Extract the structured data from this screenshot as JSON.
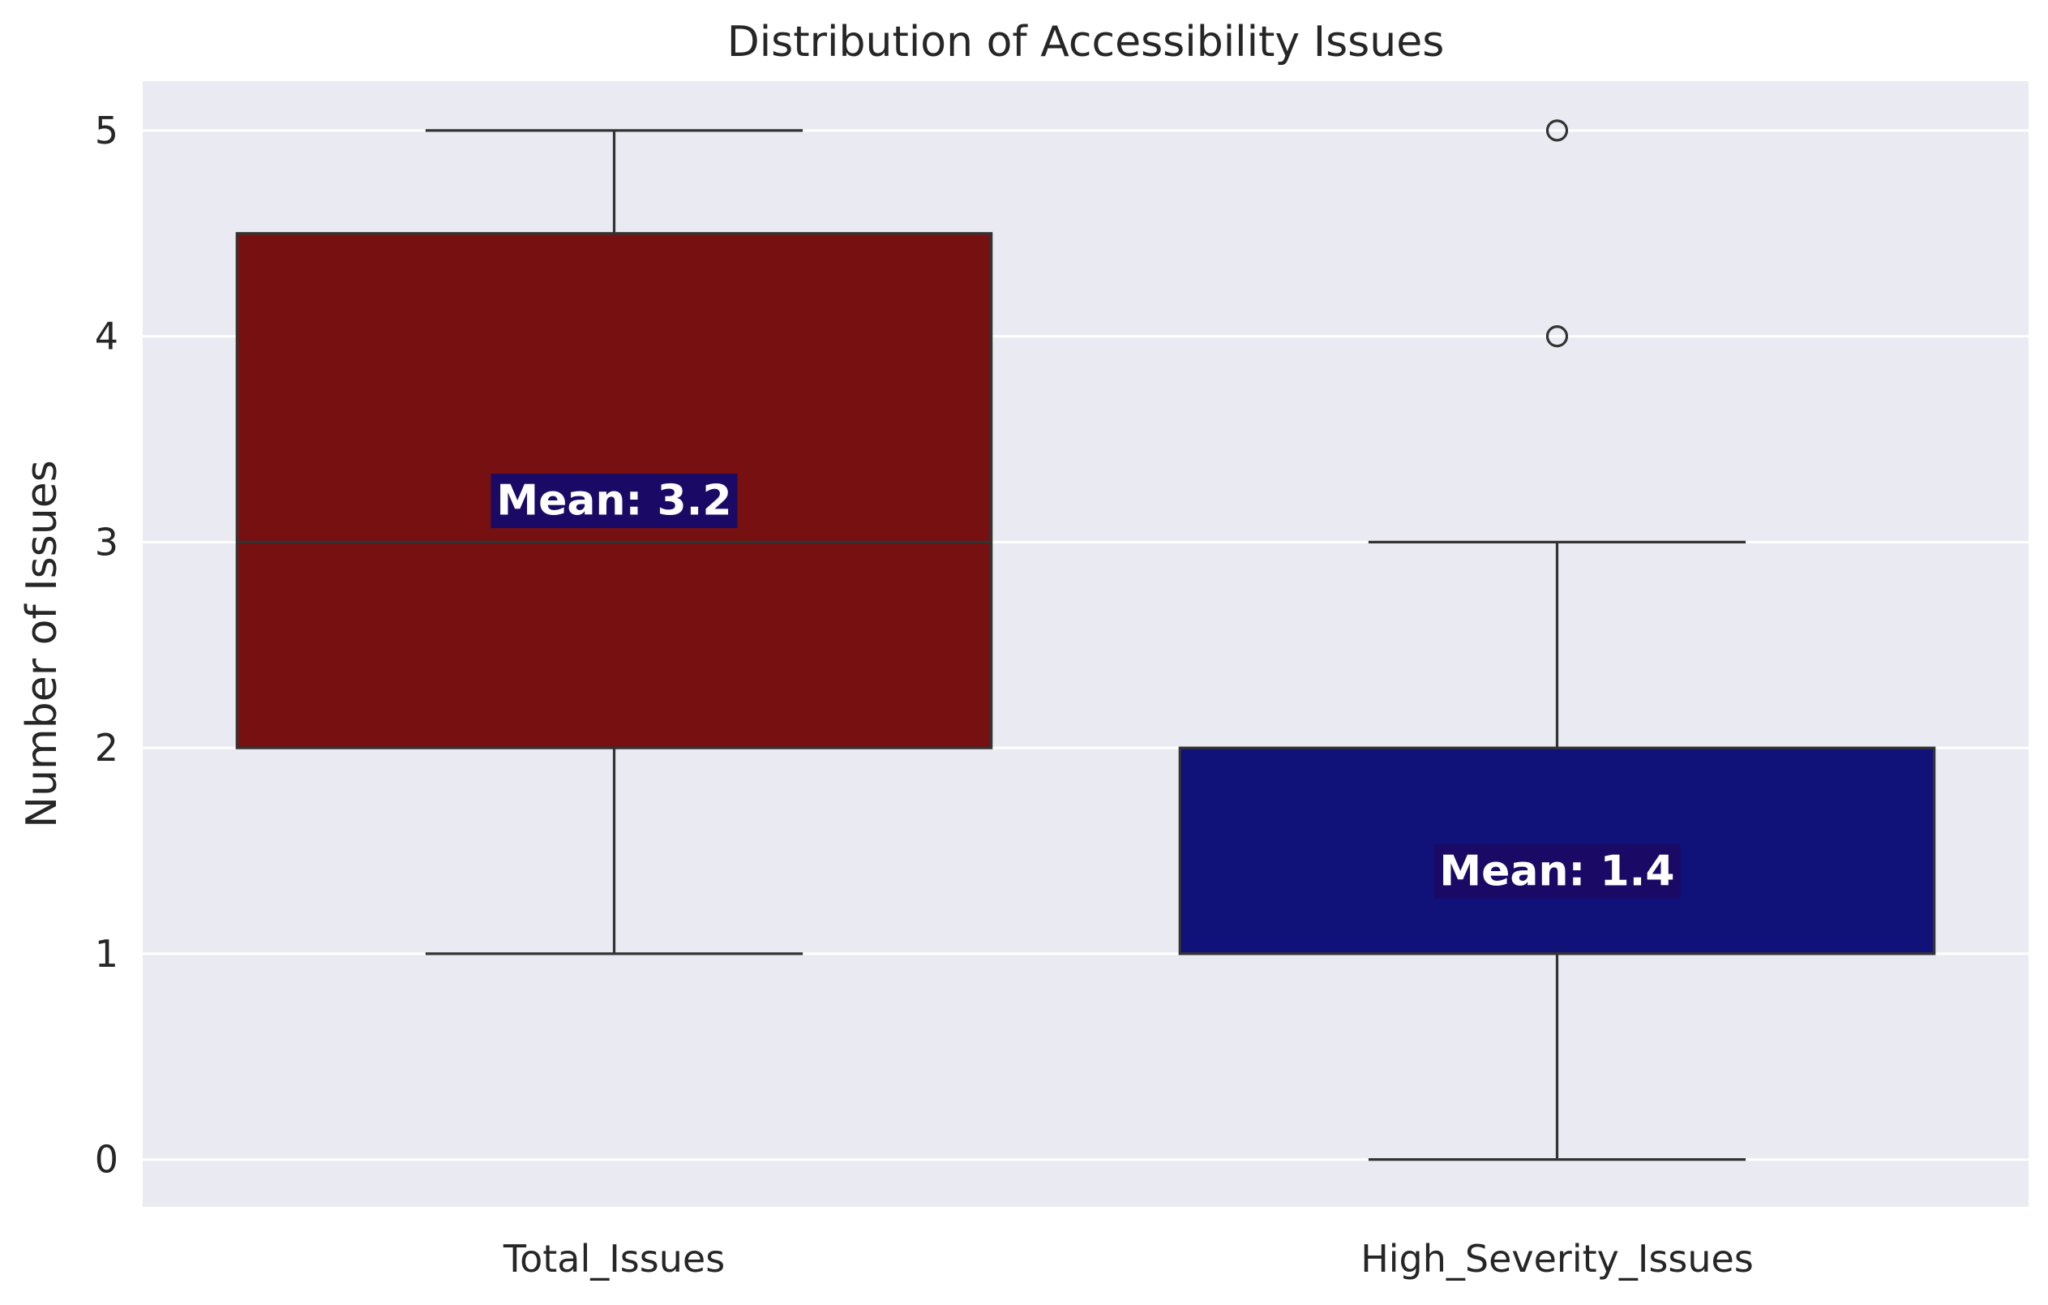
{
  "chart_data": {
    "type": "box",
    "title": "Distribution of Accessibility Issues",
    "xlabel": "",
    "ylabel": "Number of Issues",
    "ylim": [
      -0.23,
      5.24
    ],
    "yticks": [
      0,
      1,
      2,
      3,
      4,
      5
    ],
    "grid": true,
    "categories": [
      "Total_Issues",
      "High_Severity_Issues"
    ],
    "boxes": [
      {
        "name": "Total_Issues",
        "whisker_low": 1,
        "q1": 2,
        "median": 3,
        "q3": 4.5,
        "whisker_high": 5,
        "outliers": [],
        "mean": 3.2,
        "mean_label": "Mean: 3.2",
        "color": "#771111"
      },
      {
        "name": "High_Severity_Issues",
        "whisker_low": 0,
        "q1": 1,
        "median": 1,
        "q3": 2,
        "whisker_high": 3,
        "outliers": [
          4,
          5
        ],
        "mean": 1.4,
        "mean_label": "Mean: 1.4",
        "color": "#10127a"
      }
    ],
    "colors": {
      "plot_background": "#eaeaf2",
      "grid": "#ffffff",
      "edge": "#333333",
      "text": "#262626",
      "label_box": "#1a0a66",
      "label_text": "#ffffff"
    }
  }
}
